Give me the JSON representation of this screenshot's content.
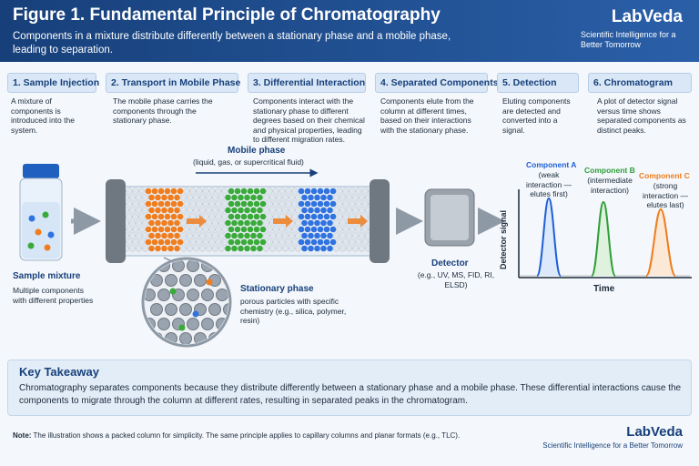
{
  "header": {
    "title": "Figure 1.  Fundamental Principle of Chromatography",
    "subtitle": "Components in a mixture distribute differently between a stationary phase and a mobile phase, leading to separation.",
    "brand": "LabVeda",
    "tagline": "Scientific Intelligence for a Better Tomorrow"
  },
  "steps": [
    {
      "title": "1. Sample Injection",
      "text": "A mixture of components is introduced into the system."
    },
    {
      "title": "2. Transport in Mobile Phase",
      "text": "The mobile phase carries the components through the stationary phase."
    },
    {
      "title": "3. Differential Interaction",
      "text": "Components interact with the stationary phase to different degrees based on their chemical and physical properties, leading to different migration rates."
    },
    {
      "title": "4. Separated Components",
      "text": "Components elute from the column at different times, based on their interactions with the stationary phase."
    },
    {
      "title": "5. Detection",
      "text": "Eluting components are detected and converted into a signal."
    },
    {
      "title": "6. Chromatogram",
      "text": "A plot of detector signal versus time shows separated components as distinct peaks."
    }
  ],
  "diagram": {
    "sample": {
      "title": "Sample mixture",
      "text": "Multiple components with different properties"
    },
    "mobile_phase": {
      "title": "Mobile phase",
      "text": "(liquid, gas, or supercritical fluid)"
    },
    "stationary_phase": {
      "title": "Stationary phase",
      "text": "porous particles with specific chemistry (e.g., silica, polymer, resin)"
    },
    "detector": {
      "title": "Detector",
      "text": "(e.g., UV, MS, FID, RI, ELSD)"
    },
    "chromatogram": {
      "y_label": "Detector signal",
      "x_label": "Time",
      "peaks": [
        {
          "name": "Component A",
          "note": "(weak interaction — elutes first)"
        },
        {
          "name": "Component B",
          "note": "(intermediate interaction)"
        },
        {
          "name": "Component C",
          "note": "(strong interaction — elutes last)"
        }
      ]
    }
  },
  "takeaway": {
    "title": "Key Takeaway",
    "text": "Chromatography separates components because they distribute differently between a stationary phase and a mobile phase. These differential interactions cause the components to migrate through the column at different rates, resulting in separated peaks in the chromatogram."
  },
  "note": {
    "label": "Note:",
    "text": "The illustration shows a packed column for simplicity. The same principle applies to capillary columns and planar formats (e.g., TLC)."
  },
  "footer": {
    "brand": "LabVeda",
    "tagline": "Scientific Intelligence for a Better Tomorrow"
  }
}
